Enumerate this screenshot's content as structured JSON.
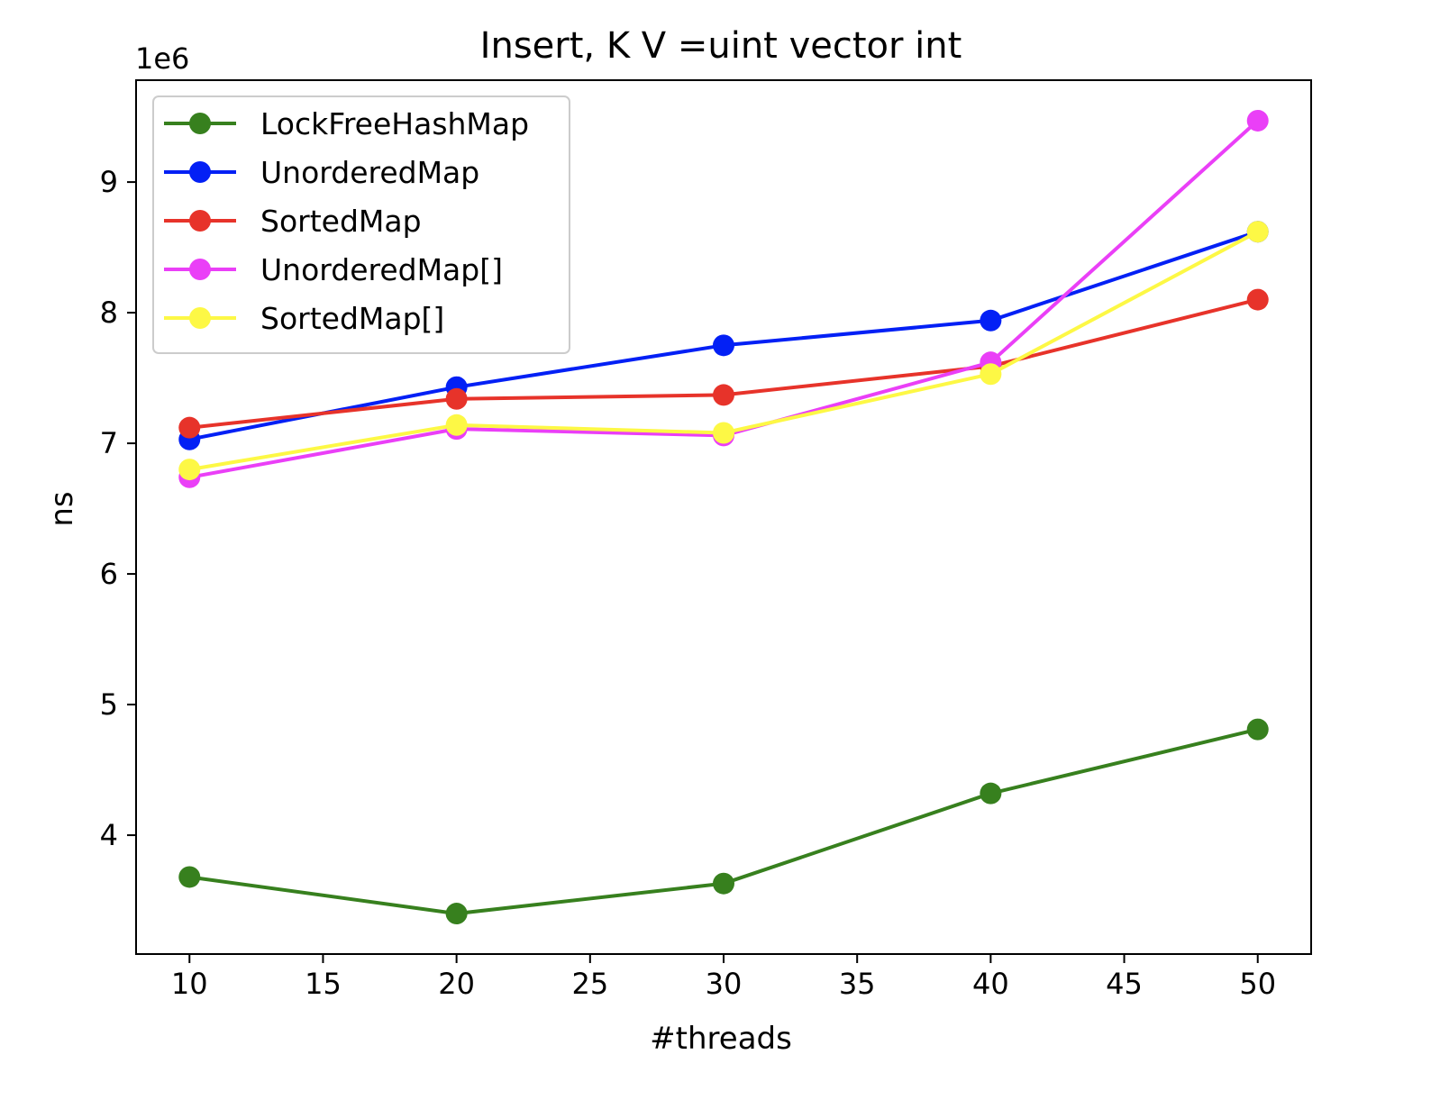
{
  "chart_data": {
    "type": "line",
    "title": "Insert, K V =uint vector int",
    "xlabel": "#threads",
    "ylabel": "ns",
    "y_offset_label": "1e6",
    "xlim": [
      8,
      52
    ],
    "ylim": [
      3.09,
      9.78
    ],
    "xticks": [
      10,
      15,
      20,
      25,
      30,
      35,
      40,
      45,
      50
    ],
    "yticks": [
      4,
      5,
      6,
      7,
      8,
      9
    ],
    "grid": false,
    "legend_position": "top-left",
    "x": [
      10,
      20,
      30,
      40,
      50
    ],
    "series": [
      {
        "name": "LockFreeHashMap",
        "color": "#37801e",
        "values": [
          3.68,
          3.4,
          3.63,
          4.32,
          4.81
        ]
      },
      {
        "name": "UnorderedMap",
        "color": "#0320f5",
        "values": [
          7.03,
          7.43,
          7.75,
          7.94,
          8.62
        ]
      },
      {
        "name": "SortedMap",
        "color": "#e7332a",
        "values": [
          7.12,
          7.34,
          7.37,
          7.59,
          8.1
        ]
      },
      {
        "name": "UnorderedMap[]",
        "color": "#ea3ff7",
        "values": [
          6.74,
          7.11,
          7.06,
          7.62,
          9.47
        ]
      },
      {
        "name": "SortedMap[]",
        "color": "#fdf845",
        "values": [
          6.8,
          7.14,
          7.08,
          7.53,
          8.62
        ]
      }
    ]
  }
}
